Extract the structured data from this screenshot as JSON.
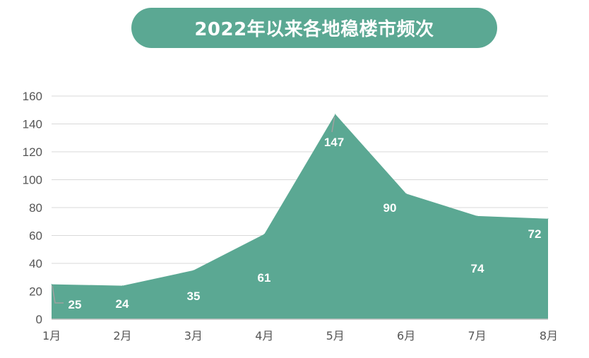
{
  "chart_data": {
    "type": "area",
    "title": "2022年以来各地稳楼市频次",
    "categories": [
      "1月",
      "2月",
      "3月",
      "4月",
      "5月",
      "6月",
      "7月",
      "8月"
    ],
    "series": [
      {
        "values": [
          25,
          24,
          35,
          61,
          147,
          90,
          74,
          72
        ]
      }
    ],
    "data_labels": [
      "25",
      "24",
      "35",
      "61",
      "147",
      "90",
      "74",
      "72"
    ],
    "yticks": [
      "0",
      "20",
      "40",
      "60",
      "80",
      "100",
      "120",
      "140",
      "160"
    ],
    "ylim": [
      0,
      160
    ],
    "xlabel": "",
    "ylabel": "",
    "grid": true,
    "legend": "none",
    "colors": {
      "area": "#5ba893",
      "grid": "#d9d9d9",
      "axis": "#bfbfbf",
      "leader": "#a0a0a0",
      "label": "#ffffff"
    }
  }
}
